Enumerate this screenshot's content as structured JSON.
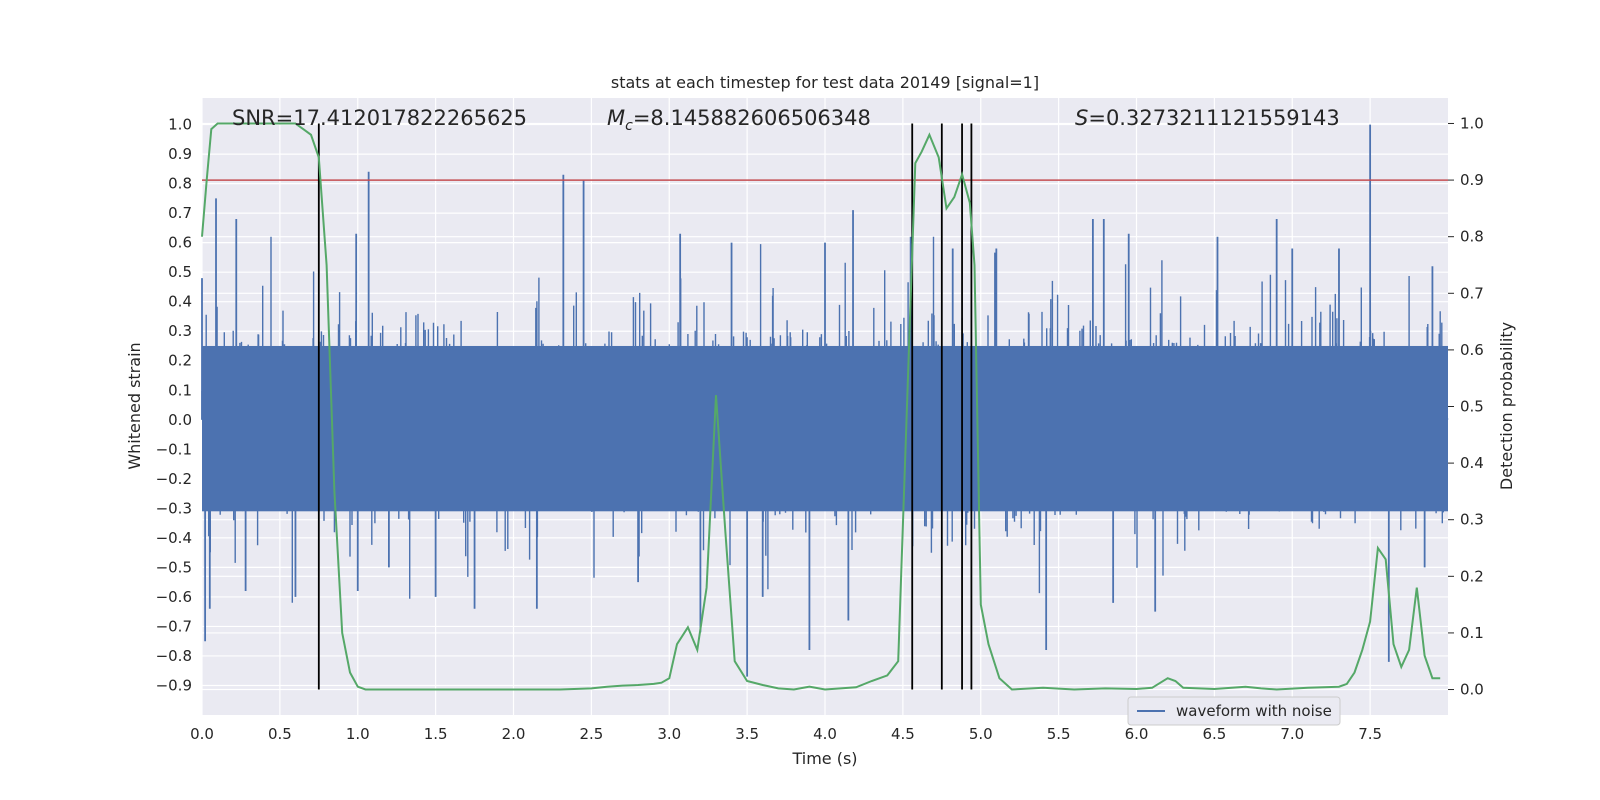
{
  "chart_data": {
    "type": "line",
    "title": "stats at each timestep for test data 20149 [signal=1]",
    "xlabel": "Time (s)",
    "ylabel_left": "Whitened strain",
    "ylabel_right": "Detection probability",
    "xlim": [
      0.0,
      8.0
    ],
    "ylim_left": [
      -1.0,
      1.09
    ],
    "ylim_right": [
      -0.045,
      1.045
    ],
    "x_ticks": [
      0.0,
      0.5,
      1.0,
      1.5,
      2.0,
      2.5,
      3.0,
      3.5,
      4.0,
      4.5,
      5.0,
      5.5,
      6.0,
      6.5,
      7.0,
      7.5
    ],
    "x_tick_labels": [
      "0.0",
      "0.5",
      "1.0",
      "1.5",
      "2.0",
      "2.5",
      "3.0",
      "3.5",
      "4.0",
      "4.5",
      "5.0",
      "5.5",
      "6.0",
      "6.5",
      "7.0",
      "7.5"
    ],
    "y_left_ticks": [
      -0.9,
      -0.8,
      -0.7,
      -0.6,
      -0.5,
      -0.4,
      -0.3,
      -0.2,
      -0.1,
      0.0,
      0.1,
      0.2,
      0.3,
      0.4,
      0.5,
      0.6,
      0.7,
      0.8,
      0.9,
      1.0
    ],
    "y_left_tick_labels": [
      "−0.9",
      "−0.8",
      "−0.7",
      "−0.6",
      "−0.5",
      "−0.4",
      "−0.3",
      "−0.2",
      "−0.1",
      "0.0",
      "0.1",
      "0.2",
      "0.3",
      "0.4",
      "0.5",
      "0.6",
      "0.7",
      "0.8",
      "0.9",
      "1.0"
    ],
    "y_right_ticks": [
      0.0,
      0.1,
      0.2,
      0.3,
      0.4,
      0.5,
      0.6,
      0.7,
      0.8,
      0.9,
      1.0
    ],
    "y_right_tick_labels": [
      "0.0",
      "0.1",
      "0.2",
      "0.3",
      "0.4",
      "0.5",
      "0.6",
      "0.7",
      "0.8",
      "0.9",
      "1.0"
    ],
    "grid": true,
    "legend": {
      "placement": "lower-right",
      "entries": [
        "waveform with noise"
      ]
    },
    "annotations": {
      "snr": "SNR=17.412017822265625",
      "mc_symbol": "M",
      "mc_sub": "c",
      "mc_value": "=8.145882606506348",
      "s_symbol": "S",
      "s_value": "=0.3273211121559143"
    },
    "threshold": {
      "value_right": 0.9,
      "color": "#c44e52"
    },
    "vertical_markers": {
      "x": [
        0.75,
        4.56,
        4.75,
        4.88,
        4.94
      ],
      "y_range_right": [
        0.0,
        1.0
      ],
      "color": "#000000"
    },
    "series": [
      {
        "name": "waveform with noise",
        "axis": "left",
        "color": "#4c72b0",
        "style": "dense-noise",
        "envelope_typical": 0.32,
        "peaks": [
          {
            "x": 0.0,
            "y": 0.48
          },
          {
            "x": 0.02,
            "y": -0.75
          },
          {
            "x": 0.05,
            "y": -0.64
          },
          {
            "x": 0.09,
            "y": 0.75
          },
          {
            "x": 0.22,
            "y": 0.68
          },
          {
            "x": 0.28,
            "y": -0.58
          },
          {
            "x": 0.6,
            "y": -0.6
          },
          {
            "x": 1.07,
            "y": 0.84
          },
          {
            "x": 0.99,
            "y": 0.63
          },
          {
            "x": 1.0,
            "y": -0.58
          },
          {
            "x": 1.2,
            "y": -0.5
          },
          {
            "x": 1.5,
            "y": -0.6
          },
          {
            "x": 1.75,
            "y": -0.64
          },
          {
            "x": 2.15,
            "y": -0.64
          },
          {
            "x": 2.32,
            "y": 0.83
          },
          {
            "x": 2.45,
            "y": 0.81
          },
          {
            "x": 2.8,
            "y": -0.55
          },
          {
            "x": 3.07,
            "y": 0.63
          },
          {
            "x": 3.2,
            "y": -0.72
          },
          {
            "x": 3.4,
            "y": 0.6
          },
          {
            "x": 3.5,
            "y": -0.87
          },
          {
            "x": 3.6,
            "y": -0.6
          },
          {
            "x": 3.9,
            "y": -0.78
          },
          {
            "x": 4.0,
            "y": 0.6
          },
          {
            "x": 4.15,
            "y": -0.68
          },
          {
            "x": 4.18,
            "y": 0.71
          },
          {
            "x": 4.55,
            "y": 0.62
          },
          {
            "x": 4.82,
            "y": 0.58
          },
          {
            "x": 5.1,
            "y": 0.58
          },
          {
            "x": 5.42,
            "y": -0.78
          },
          {
            "x": 5.72,
            "y": 0.68
          },
          {
            "x": 5.79,
            "y": 0.68
          },
          {
            "x": 5.85,
            "y": -0.62
          },
          {
            "x": 5.95,
            "y": 0.63
          },
          {
            "x": 6.12,
            "y": -0.65
          },
          {
            "x": 6.52,
            "y": 0.62
          },
          {
            "x": 6.9,
            "y": 0.68
          },
          {
            "x": 7.0,
            "y": 0.58
          },
          {
            "x": 7.3,
            "y": 0.58
          },
          {
            "x": 7.5,
            "y": 1.0
          },
          {
            "x": 7.62,
            "y": -0.82
          },
          {
            "x": 7.9,
            "y": 0.52
          },
          {
            "x": 7.85,
            "y": -0.5
          }
        ]
      },
      {
        "name": "",
        "axis": "right",
        "color": "#55a868",
        "x": [
          0.0,
          0.03,
          0.06,
          0.1,
          0.2,
          0.3,
          0.4,
          0.5,
          0.6,
          0.65,
          0.7,
          0.75,
          0.8,
          0.85,
          0.9,
          0.95,
          1.0,
          1.05,
          1.1,
          1.2,
          1.4,
          1.5,
          1.7,
          2.0,
          2.3,
          2.5,
          2.6,
          2.7,
          2.8,
          2.9,
          2.95,
          3.0,
          3.05,
          3.12,
          3.18,
          3.24,
          3.3,
          3.36,
          3.42,
          3.5,
          3.6,
          3.7,
          3.8,
          3.9,
          4.0,
          4.1,
          4.2,
          4.3,
          4.4,
          4.47,
          4.52,
          4.58,
          4.62,
          4.67,
          4.73,
          4.78,
          4.83,
          4.88,
          4.93,
          4.96,
          5.0,
          5.05,
          5.12,
          5.2,
          5.4,
          5.6,
          5.8,
          6.0,
          6.1,
          6.2,
          6.25,
          6.3,
          6.5,
          6.7,
          6.8,
          6.9,
          7.1,
          7.3,
          7.35,
          7.4,
          7.45,
          7.5,
          7.55,
          7.6,
          7.65,
          7.7,
          7.75,
          7.8,
          7.85,
          7.9,
          7.95
        ],
        "y": [
          0.8,
          0.9,
          0.99,
          1.0,
          1.0,
          1.0,
          1.0,
          1.0,
          1.0,
          0.99,
          0.98,
          0.94,
          0.75,
          0.35,
          0.1,
          0.03,
          0.005,
          0.0,
          0.0,
          0.0,
          0.0,
          0.0,
          0.0,
          0.0,
          0.0,
          0.002,
          0.005,
          0.007,
          0.008,
          0.01,
          0.012,
          0.02,
          0.08,
          0.11,
          0.07,
          0.18,
          0.52,
          0.28,
          0.05,
          0.015,
          0.008,
          0.002,
          0.0,
          0.005,
          0.0,
          0.002,
          0.004,
          0.015,
          0.025,
          0.05,
          0.45,
          0.93,
          0.95,
          0.98,
          0.94,
          0.85,
          0.87,
          0.91,
          0.86,
          0.75,
          0.15,
          0.08,
          0.02,
          0.0,
          0.003,
          0.0,
          0.002,
          0.001,
          0.003,
          0.02,
          0.015,
          0.003,
          0.001,
          0.005,
          0.002,
          0.0,
          0.003,
          0.005,
          0.01,
          0.03,
          0.07,
          0.12,
          0.25,
          0.23,
          0.08,
          0.04,
          0.07,
          0.18,
          0.06,
          0.02,
          0.02
        ]
      }
    ]
  }
}
